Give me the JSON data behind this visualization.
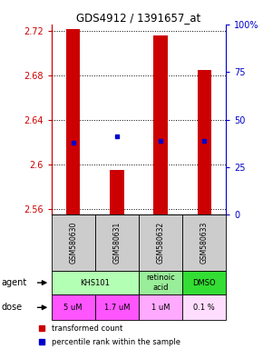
{
  "title": "GDS4912 / 1391657_at",
  "samples": [
    "GSM580630",
    "GSM580631",
    "GSM580632",
    "GSM580633"
  ],
  "bar_values": [
    2.722,
    2.595,
    2.716,
    2.685
  ],
  "bar_bottom": 2.555,
  "percentile_values": [
    2.62,
    2.625,
    2.621,
    2.621
  ],
  "ylim_left": [
    2.555,
    2.726
  ],
  "ylim_right": [
    0,
    100
  ],
  "yticks_left": [
    2.56,
    2.6,
    2.64,
    2.68,
    2.72
  ],
  "ytick_labels_left": [
    "2.56",
    "2.6",
    "2.64",
    "2.68",
    "2.72"
  ],
  "yticks_right": [
    0,
    25,
    50,
    75,
    100
  ],
  "ytick_labels_right": [
    "0",
    "25",
    "50",
    "75",
    "100%"
  ],
  "bar_color": "#cc0000",
  "percentile_color": "#0000cc",
  "agent_spans": [
    2,
    1,
    1
  ],
  "agent_labels": [
    "KHS101",
    "retinoic\nacid",
    "DMSO"
  ],
  "agent_colors": [
    "#b3ffb3",
    "#99ee99",
    "#33dd33"
  ],
  "dose_labels": [
    "5 uM",
    "1.7 uM",
    "1 uM",
    "0.1 %"
  ],
  "dose_colors": [
    "#ff55ff",
    "#ff55ff",
    "#ffaaff",
    "#ffddff"
  ],
  "sample_bg": "#cccccc",
  "legend_red_label": "transformed count",
  "legend_blue_label": "percentile rank within the sample",
  "title_color": "#000000",
  "left_axis_color": "#cc0000",
  "right_axis_color": "#0000cc"
}
